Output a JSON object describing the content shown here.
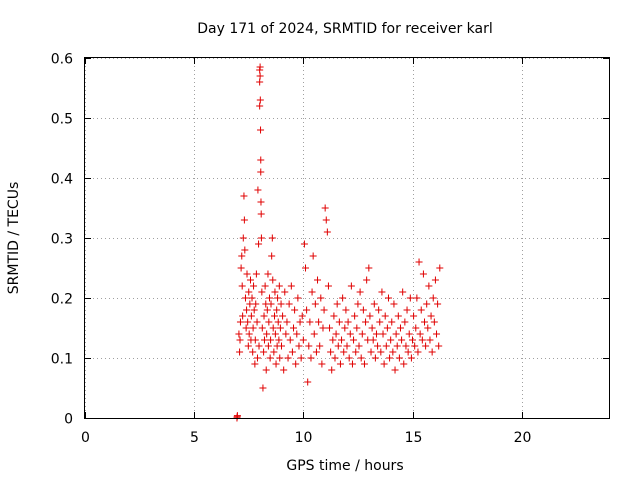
{
  "chart_data": {
    "type": "scatter",
    "title": "Day 171 of 2024, SRMTID for receiver karl",
    "xlabel": "GPS time / hours",
    "ylabel": "SRMTID / TECUs",
    "xlim": [
      0,
      24
    ],
    "ylim": [
      0,
      0.6
    ],
    "xticks": [
      0,
      5,
      10,
      15,
      20
    ],
    "yticks": [
      0,
      0.1,
      0.2,
      0.3,
      0.4,
      0.5,
      0.6
    ],
    "ytick_labels": [
      "0",
      "0.1",
      "0.2",
      "0.3",
      "0.4",
      "0.5",
      "0.6"
    ],
    "grid": true,
    "marker": "+",
    "color": "#e00000",
    "series": [
      {
        "name": "SRMTID",
        "x": [
          6.96,
          6.97,
          6.98,
          7.05,
          7.08,
          7.1,
          7.12,
          7.15,
          7.18,
          7.2,
          7.22,
          7.25,
          7.28,
          7.3,
          7.32,
          7.35,
          7.38,
          7.4,
          7.42,
          7.45,
          7.48,
          7.5,
          7.52,
          7.55,
          7.58,
          7.6,
          7.62,
          7.65,
          7.68,
          7.7,
          7.72,
          7.75,
          7.78,
          7.8,
          7.82,
          7.85,
          7.88,
          7.9,
          7.92,
          7.95,
          7.97,
          8.0,
          8.0,
          8.0,
          8.02,
          8.02,
          8.03,
          8.04,
          8.05,
          8.05,
          8.06,
          8.07,
          8.08,
          8.1,
          8.12,
          8.15,
          8.18,
          8.2,
          8.22,
          8.25,
          8.28,
          8.3,
          8.32,
          8.35,
          8.38,
          8.4,
          8.42,
          8.45,
          8.48,
          8.5,
          8.52,
          8.55,
          8.58,
          8.6,
          8.62,
          8.65,
          8.68,
          8.7,
          8.72,
          8.75,
          8.78,
          8.8,
          8.82,
          8.85,
          8.88,
          8.9,
          8.92,
          8.95,
          8.98,
          9.0,
          9.05,
          9.1,
          9.15,
          9.2,
          9.25,
          9.3,
          9.35,
          9.4,
          9.45,
          9.5,
          9.55,
          9.6,
          9.65,
          9.7,
          9.75,
          9.8,
          9.85,
          9.9,
          9.95,
          10.0,
          10.05,
          10.1,
          10.15,
          10.2,
          10.25,
          10.3,
          10.35,
          10.4,
          10.45,
          10.5,
          10.55,
          10.6,
          10.65,
          10.7,
          10.75,
          10.8,
          10.85,
          10.9,
          10.95,
          11.0,
          11.05,
          11.1,
          11.15,
          11.2,
          11.25,
          11.3,
          11.35,
          11.4,
          11.45,
          11.5,
          11.55,
          11.6,
          11.65,
          11.7,
          11.75,
          11.8,
          11.85,
          11.9,
          11.95,
          12.0,
          12.05,
          12.1,
          12.15,
          12.2,
          12.25,
          12.3,
          12.35,
          12.4,
          12.45,
          12.5,
          12.55,
          12.6,
          12.65,
          12.7,
          12.75,
          12.8,
          12.85,
          12.9,
          12.95,
          13.0,
          13.05,
          13.1,
          13.15,
          13.2,
          13.25,
          13.3,
          13.35,
          13.4,
          13.45,
          13.5,
          13.55,
          13.6,
          13.65,
          13.7,
          13.75,
          13.8,
          13.85,
          13.9,
          13.95,
          14.0,
          14.05,
          14.1,
          14.15,
          14.2,
          14.25,
          14.3,
          14.35,
          14.4,
          14.45,
          14.5,
          14.55,
          14.6,
          14.65,
          14.7,
          14.75,
          14.8,
          14.85,
          14.9,
          14.95,
          15.0,
          15.05,
          15.1,
          15.15,
          15.2,
          15.25,
          15.3,
          15.35,
          15.4,
          15.45,
          15.5,
          15.55,
          15.6,
          15.65,
          15.7,
          15.75,
          15.8,
          15.85,
          15.9,
          15.95,
          16.0,
          16.05,
          16.1,
          16.15,
          16.2,
          16.25
        ],
        "y": [
          0.0,
          0.002,
          0.004,
          0.14,
          0.11,
          0.13,
          0.16,
          0.25,
          0.27,
          0.22,
          0.17,
          0.3,
          0.37,
          0.33,
          0.28,
          0.2,
          0.15,
          0.18,
          0.24,
          0.16,
          0.12,
          0.21,
          0.14,
          0.19,
          0.23,
          0.13,
          0.17,
          0.2,
          0.11,
          0.15,
          0.22,
          0.18,
          0.09,
          0.13,
          0.19,
          0.24,
          0.16,
          0.1,
          0.38,
          0.29,
          0.12,
          0.58,
          0.56,
          0.52,
          0.585,
          0.57,
          0.53,
          0.48,
          0.43,
          0.41,
          0.36,
          0.34,
          0.3,
          0.21,
          0.15,
          0.05,
          0.11,
          0.17,
          0.13,
          0.22,
          0.19,
          0.08,
          0.14,
          0.18,
          0.24,
          0.12,
          0.16,
          0.2,
          0.1,
          0.13,
          0.19,
          0.27,
          0.3,
          0.23,
          0.15,
          0.11,
          0.17,
          0.21,
          0.14,
          0.09,
          0.18,
          0.12,
          0.2,
          0.16,
          0.13,
          0.22,
          0.1,
          0.15,
          0.19,
          0.12,
          0.17,
          0.08,
          0.21,
          0.14,
          0.16,
          0.1,
          0.19,
          0.13,
          0.22,
          0.11,
          0.15,
          0.18,
          0.09,
          0.14,
          0.2,
          0.12,
          0.16,
          0.1,
          0.17,
          0.13,
          0.29,
          0.25,
          0.18,
          0.06,
          0.12,
          0.16,
          0.1,
          0.21,
          0.27,
          0.14,
          0.19,
          0.11,
          0.23,
          0.16,
          0.12,
          0.2,
          0.09,
          0.15,
          0.18,
          0.35,
          0.33,
          0.31,
          0.22,
          0.15,
          0.11,
          0.08,
          0.13,
          0.17,
          0.1,
          0.14,
          0.19,
          0.12,
          0.16,
          0.09,
          0.13,
          0.2,
          0.11,
          0.15,
          0.18,
          0.12,
          0.16,
          0.1,
          0.14,
          0.22,
          0.09,
          0.13,
          0.17,
          0.11,
          0.15,
          0.19,
          0.12,
          0.21,
          0.1,
          0.14,
          0.18,
          0.09,
          0.16,
          0.23,
          0.13,
          0.25,
          0.17,
          0.11,
          0.15,
          0.13,
          0.19,
          0.1,
          0.14,
          0.12,
          0.18,
          0.16,
          0.11,
          0.21,
          0.14,
          0.09,
          0.17,
          0.12,
          0.15,
          0.2,
          0.1,
          0.13,
          0.16,
          0.11,
          0.19,
          0.08,
          0.14,
          0.12,
          0.17,
          0.1,
          0.15,
          0.13,
          0.21,
          0.09,
          0.16,
          0.12,
          0.18,
          0.11,
          0.14,
          0.2,
          0.1,
          0.13,
          0.17,
          0.12,
          0.15,
          0.2,
          0.11,
          0.26,
          0.14,
          0.18,
          0.13,
          0.24,
          0.16,
          0.12,
          0.19,
          0.15,
          0.22,
          0.13,
          0.17,
          0.11,
          0.2,
          0.16,
          0.23,
          0.14,
          0.19,
          0.12,
          0.25
        ]
      }
    ]
  }
}
